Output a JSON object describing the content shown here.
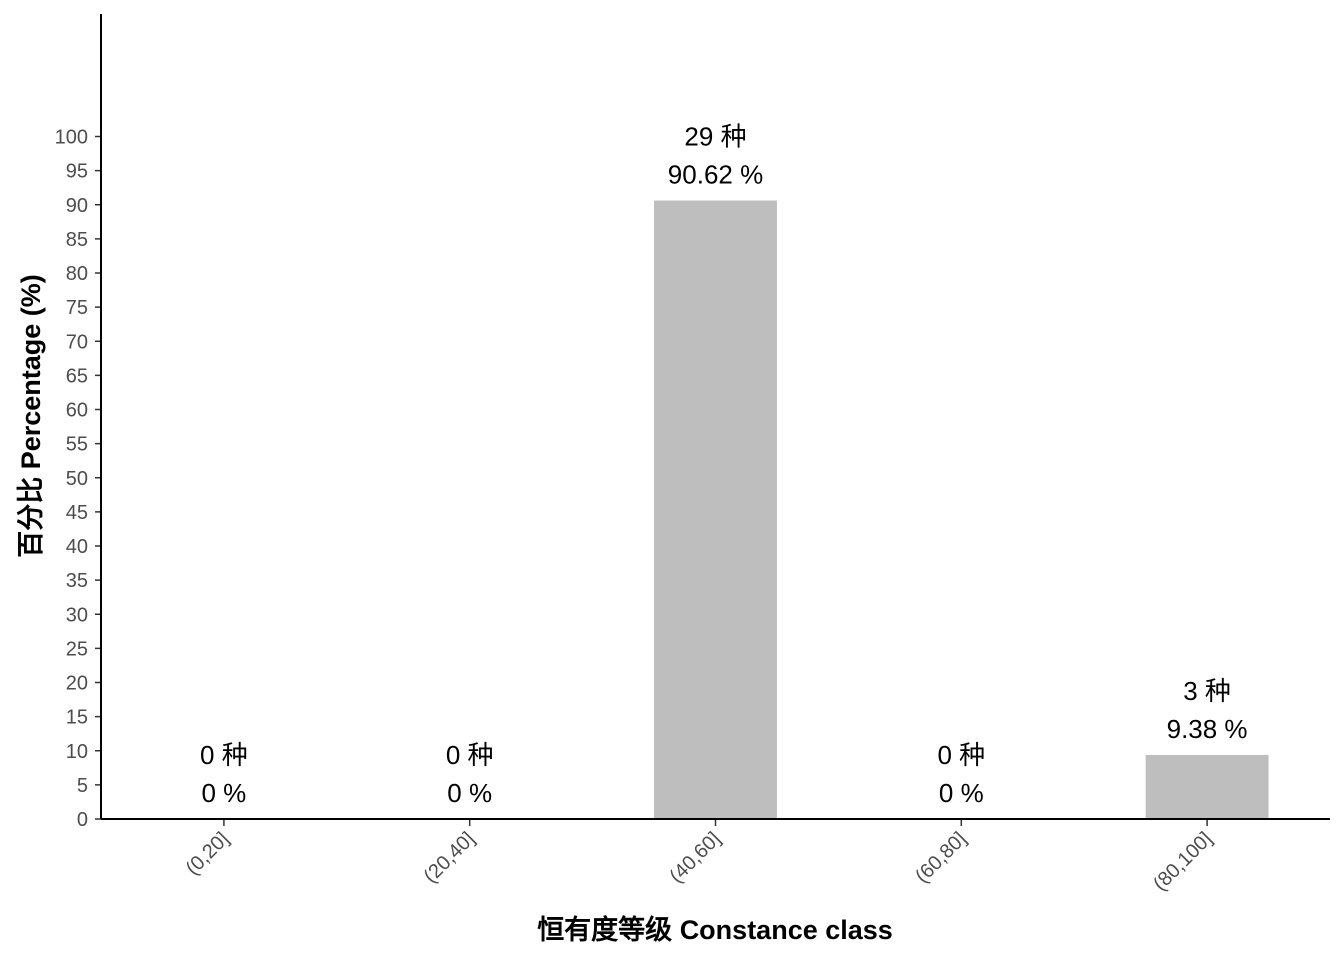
{
  "chart_data": {
    "type": "bar",
    "categories": [
      "(0,20]",
      "(20,40]",
      "(40,60]",
      "(60,80]",
      "(80,100]"
    ],
    "values": [
      0,
      0,
      90.62,
      0,
      9.38
    ],
    "counts": [
      0,
      0,
      29,
      0,
      3
    ],
    "count_labels": [
      "0 种",
      "0 种",
      "29 种",
      "0 种",
      "3 种"
    ],
    "percent_labels": [
      "0 %",
      "0 %",
      "90.62 %",
      "0 %",
      "9.38 %"
    ],
    "xlabel": "恒有度等级 Constance class",
    "ylabel": "百分比 Percentage (%)",
    "ylim": [
      0,
      100
    ],
    "yticks": [
      0,
      5,
      10,
      15,
      20,
      25,
      30,
      35,
      40,
      45,
      50,
      55,
      60,
      65,
      70,
      75,
      80,
      85,
      90,
      95,
      100
    ],
    "bar_color": "#bebebe",
    "grid": false
  }
}
